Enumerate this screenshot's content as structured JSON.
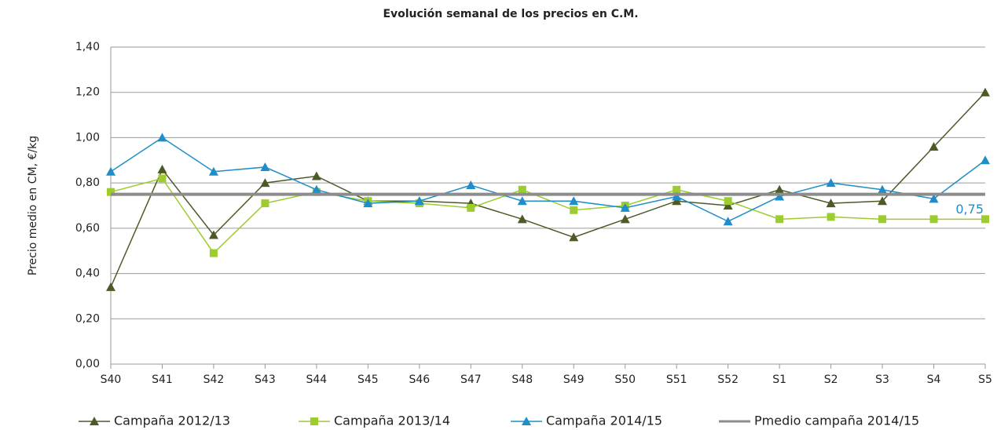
{
  "chart_data": {
    "type": "line",
    "title": "Evolución semanal de los precios en C.M.",
    "y_label": "Precio medio en CM, €/kg",
    "categories": [
      "S40",
      "S41",
      "S42",
      "S43",
      "S44",
      "S45",
      "S46",
      "S47",
      "S48",
      "S49",
      "S50",
      "S51",
      "S52",
      "S1",
      "S2",
      "S3",
      "S4",
      "S5"
    ],
    "series": [
      {
        "name": "Campaña 2012/13",
        "color": "#4b5a26",
        "marker": "triangle",
        "values": [
          0.34,
          0.86,
          0.57,
          0.8,
          0.83,
          0.72,
          0.72,
          0.71,
          0.64,
          0.56,
          0.64,
          0.72,
          0.7,
          0.77,
          0.71,
          0.72,
          0.96,
          1.2
        ]
      },
      {
        "name": "Campaña 2013/14",
        "color": "#9ccc2e",
        "marker": "square",
        "values": [
          0.76,
          0.82,
          0.49,
          0.71,
          0.76,
          0.72,
          0.71,
          0.69,
          0.77,
          0.68,
          0.7,
          0.77,
          0.72,
          0.64,
          0.65,
          0.64,
          0.64,
          0.64
        ]
      },
      {
        "name": "Campaña 2014/15",
        "color": "#1e8dc9",
        "marker": "triangle",
        "values": [
          0.85,
          1.0,
          0.85,
          0.87,
          0.77,
          0.71,
          0.72,
          0.79,
          0.72,
          0.72,
          0.69,
          0.74,
          0.63,
          0.74,
          0.8,
          0.77,
          0.73,
          0.9
        ]
      },
      {
        "name": "Pmedio campaña 2014/15",
        "color": "#8c8c8c",
        "marker": "none",
        "width": 4,
        "values": [
          0.75,
          0.75,
          0.75,
          0.75,
          0.75,
          0.75,
          0.75,
          0.75,
          0.75,
          0.75,
          0.75,
          0.75,
          0.75,
          0.75,
          0.75,
          0.75,
          0.75,
          0.75
        ],
        "value_label": "0,75",
        "label_color": "#1e8dc9"
      }
    ],
    "ylim": [
      0,
      1.4
    ],
    "yticks": [
      {
        "value": 0,
        "label": "0,00"
      },
      {
        "value": 0.2,
        "label": "0,20"
      },
      {
        "value": 0.4,
        "label": "0,40"
      },
      {
        "value": 0.6,
        "label": "0,60"
      },
      {
        "value": 0.8,
        "label": "0,80"
      },
      {
        "value": 1.0,
        "label": "1,00"
      },
      {
        "value": 1.2,
        "label": "1,20"
      },
      {
        "value": 1.4,
        "label": "1,40"
      }
    ],
    "grid": true,
    "legend": "bottom"
  }
}
